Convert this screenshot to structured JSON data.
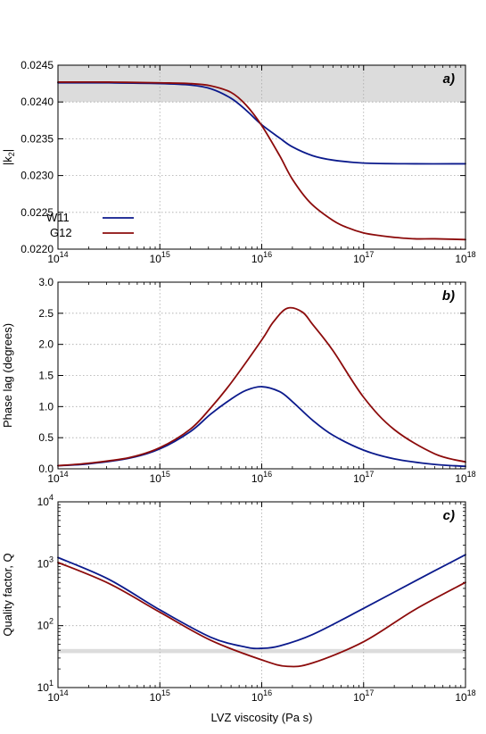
{
  "chart_data": [
    {
      "type": "line",
      "panel_label": "a)",
      "xscale": "log",
      "xlim": [
        100000000000000.0,
        1e+18
      ],
      "xticks": [
        {
          "value": 100000000000000.0,
          "base": "10",
          "exp": "14"
        },
        {
          "value": 1000000000000000.0,
          "base": "10",
          "exp": "15"
        },
        {
          "value": 1e+16,
          "base": "10",
          "exp": "16"
        },
        {
          "value": 1e+17,
          "base": "10",
          "exp": "17"
        },
        {
          "value": 1e+18,
          "base": "10",
          "exp": "18"
        }
      ],
      "yscale": "linear",
      "ylim": [
        0.022,
        0.0245
      ],
      "yticks": [
        {
          "value": 0.022,
          "label": "0.0220"
        },
        {
          "value": 0.0225,
          "label": "0.0225"
        },
        {
          "value": 0.023,
          "label": "0.0230"
        },
        {
          "value": 0.0235,
          "label": "0.0235"
        },
        {
          "value": 0.024,
          "label": "0.0240"
        },
        {
          "value": 0.0245,
          "label": "0.0245"
        }
      ],
      "ylabel": "|k2|",
      "xlabel": "",
      "grid": true,
      "legend": "lower-left",
      "shaded_band": [
        0.024,
        0.0245
      ],
      "series": [
        {
          "name": "W11",
          "color": "#0b1a8c",
          "x": [
            100000000000000.0,
            316000000000000.0,
            1000000000000000.0,
            2000000000000000.0,
            3160000000000000.0,
            5000000000000000.0,
            7000000000000000.0,
            1e+16,
            1.5e+16,
            2e+16,
            3.16e+16,
            5e+16,
            1e+17,
            3.16e+17,
            1e+18
          ],
          "y": [
            0.02426,
            0.02426,
            0.02425,
            0.02423,
            0.02418,
            0.02405,
            0.02389,
            0.02369,
            0.02351,
            0.02339,
            0.02327,
            0.02321,
            0.02317,
            0.02316,
            0.02316
          ]
        },
        {
          "name": "G12",
          "color": "#8c0b0b",
          "x": [
            100000000000000.0,
            316000000000000.0,
            1000000000000000.0,
            2000000000000000.0,
            3160000000000000.0,
            5000000000000000.0,
            7000000000000000.0,
            1e+16,
            1.5e+16,
            2e+16,
            3e+16,
            5e+16,
            7e+16,
            1e+17,
            1.5e+17,
            2e+17,
            3.16e+17,
            5e+17,
            1e+18
          ],
          "y": [
            0.02427,
            0.02427,
            0.02426,
            0.02425,
            0.02422,
            0.02413,
            0.02396,
            0.02368,
            0.02327,
            0.02295,
            0.02263,
            0.02239,
            0.02229,
            0.02222,
            0.02218,
            0.02216,
            0.02214,
            0.02214,
            0.02213
          ]
        }
      ]
    },
    {
      "type": "line",
      "panel_label": "b)",
      "xscale": "log",
      "xlim": [
        100000000000000.0,
        1e+18
      ],
      "xticks": [
        {
          "value": 100000000000000.0,
          "base": "10",
          "exp": "14"
        },
        {
          "value": 1000000000000000.0,
          "base": "10",
          "exp": "15"
        },
        {
          "value": 1e+16,
          "base": "10",
          "exp": "16"
        },
        {
          "value": 1e+17,
          "base": "10",
          "exp": "17"
        },
        {
          "value": 1e+18,
          "base": "10",
          "exp": "18"
        }
      ],
      "yscale": "linear",
      "ylim": [
        0,
        3
      ],
      "yticks": [
        {
          "value": 0,
          "label": "0.0"
        },
        {
          "value": 0.5,
          "label": "0.5"
        },
        {
          "value": 1,
          "label": "1.0"
        },
        {
          "value": 1.5,
          "label": "1.5"
        },
        {
          "value": 2,
          "label": "2.0"
        },
        {
          "value": 2.5,
          "label": "2.5"
        },
        {
          "value": 3,
          "label": "3.0"
        }
      ],
      "ylabel": "Phase lag (degrees)",
      "xlabel": "",
      "grid": true,
      "series": [
        {
          "name": "W11",
          "color": "#0b1a8c",
          "x": [
            100000000000000.0,
            200000000000000.0,
            500000000000000.0,
            1000000000000000.0,
            2000000000000000.0,
            3160000000000000.0,
            5000000000000000.0,
            7000000000000000.0,
            1e+16,
            1.5e+16,
            2e+16,
            3.16e+16,
            5e+16,
            1e+17,
            2e+17,
            5e+17,
            1e+18
          ],
          "y": [
            0.05,
            0.08,
            0.17,
            0.32,
            0.6,
            0.88,
            1.12,
            1.26,
            1.32,
            1.24,
            1.08,
            0.78,
            0.54,
            0.3,
            0.16,
            0.07,
            0.04
          ]
        },
        {
          "name": "G12",
          "color": "#8c0b0b",
          "x": [
            100000000000000.0,
            200000000000000.0,
            500000000000000.0,
            1000000000000000.0,
            2000000000000000.0,
            3160000000000000.0,
            5000000000000000.0,
            1e+16,
            1.3e+16,
            1.78e+16,
            2.5e+16,
            3.16e+16,
            5e+16,
            1e+17,
            2e+17,
            5e+17,
            1e+18
          ],
          "y": [
            0.05,
            0.09,
            0.18,
            0.34,
            0.64,
            0.98,
            1.38,
            2.07,
            2.36,
            2.58,
            2.52,
            2.32,
            1.9,
            1.15,
            0.63,
            0.24,
            0.11
          ]
        }
      ]
    },
    {
      "type": "line",
      "panel_label": "c)",
      "xscale": "log",
      "xlim": [
        100000000000000.0,
        1e+18
      ],
      "xticks": [
        {
          "value": 100000000000000.0,
          "base": "10",
          "exp": "14"
        },
        {
          "value": 1000000000000000.0,
          "base": "10",
          "exp": "15"
        },
        {
          "value": 1e+16,
          "base": "10",
          "exp": "16"
        },
        {
          "value": 1e+17,
          "base": "10",
          "exp": "17"
        },
        {
          "value": 1e+18,
          "base": "10",
          "exp": "18"
        }
      ],
      "yscale": "log",
      "ylim": [
        10,
        10000
      ],
      "yticks": [
        {
          "value": 10,
          "base": "10",
          "exp": "1"
        },
        {
          "value": 100,
          "base": "10",
          "exp": "2"
        },
        {
          "value": 1000,
          "base": "10",
          "exp": "3"
        },
        {
          "value": 10000,
          "base": "10",
          "exp": "4"
        }
      ],
      "ylabel": "Quality factor, Q",
      "xlabel": "LVZ viscosity (Pa s)",
      "grid": true,
      "shaded_band": [
        36,
        42
      ],
      "series": [
        {
          "name": "W11",
          "color": "#0b1a8c",
          "x": [
            100000000000000.0,
            316000000000000.0,
            1000000000000000.0,
            3160000000000000.0,
            7000000000000000.0,
            1e+16,
            1.5e+16,
            3.16e+16,
            1e+17,
            3.16e+17,
            1e+18
          ],
          "y": [
            1260,
            560,
            180,
            65,
            45,
            43,
            47,
            72,
            190,
            520,
            1400
          ]
        },
        {
          "name": "G12",
          "color": "#8c0b0b",
          "x": [
            100000000000000.0,
            316000000000000.0,
            1000000000000000.0,
            3160000000000000.0,
            1e+16,
            1.78e+16,
            3.16e+16,
            1e+17,
            3.16e+17,
            1e+18
          ],
          "y": [
            1050,
            480,
            165,
            58,
            28,
            22,
            25,
            55,
            180,
            500
          ]
        }
      ]
    }
  ]
}
